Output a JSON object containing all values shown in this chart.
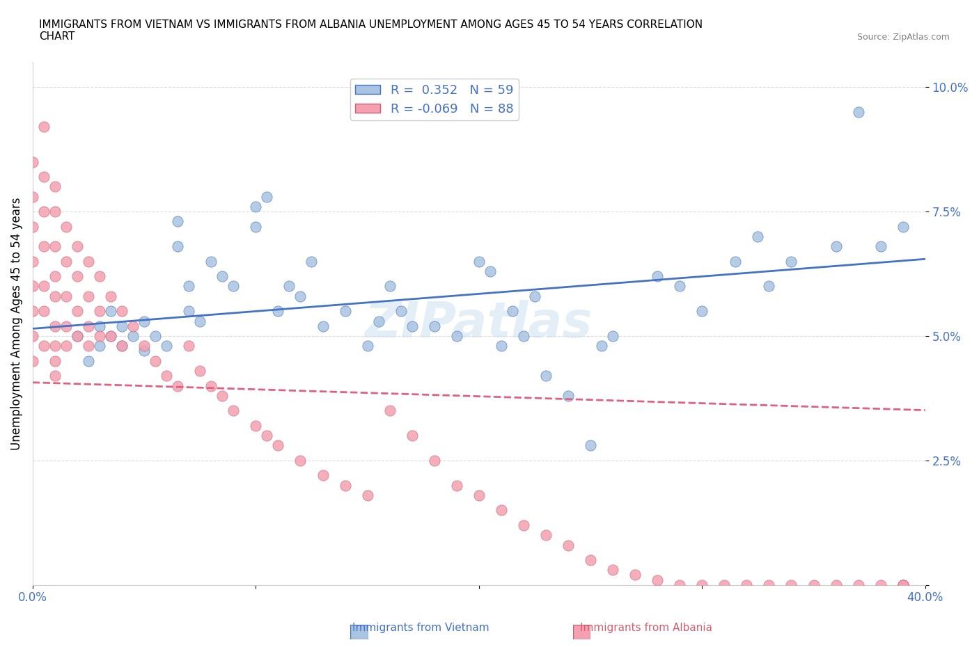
{
  "title": "IMMIGRANTS FROM VIETNAM VS IMMIGRANTS FROM ALBANIA UNEMPLOYMENT AMONG AGES 45 TO 54 YEARS CORRELATION\nCHART",
  "source_text": "Source: ZipAtlas.com",
  "ylabel": "Unemployment Among Ages 45 to 54 years",
  "xlim": [
    0.0,
    0.4
  ],
  "ylim": [
    0.0,
    0.105
  ],
  "xticks": [
    0.0,
    0.1,
    0.2,
    0.3,
    0.4
  ],
  "xticklabels": [
    "0.0%",
    "",
    "",
    "",
    "40.0%"
  ],
  "ytick_positions": [
    0.0,
    0.025,
    0.05,
    0.075,
    0.1
  ],
  "yticklabels": [
    "",
    "2.5%",
    "5.0%",
    "7.5%",
    "10.0%"
  ],
  "vietnam_R": 0.352,
  "vietnam_N": 59,
  "albania_R": -0.069,
  "albania_N": 88,
  "vietnam_color": "#a8c4e0",
  "albania_color": "#f4a0b0",
  "vietnam_line_color": "#4472c4",
  "albania_line_color": "#e06080",
  "watermark": "ZIPatlas",
  "legend_vietnam": "Immigrants from Vietnam",
  "legend_albania": "Immigrants from Albania",
  "vietnam_x": [
    0.02,
    0.025,
    0.03,
    0.03,
    0.035,
    0.035,
    0.04,
    0.04,
    0.045,
    0.05,
    0.05,
    0.055,
    0.06,
    0.065,
    0.065,
    0.07,
    0.07,
    0.075,
    0.08,
    0.085,
    0.09,
    0.1,
    0.1,
    0.105,
    0.11,
    0.115,
    0.12,
    0.125,
    0.13,
    0.14,
    0.15,
    0.155,
    0.16,
    0.165,
    0.17,
    0.18,
    0.19,
    0.2,
    0.205,
    0.21,
    0.215,
    0.22,
    0.225,
    0.23,
    0.24,
    0.25,
    0.255,
    0.26,
    0.28,
    0.29,
    0.3,
    0.315,
    0.325,
    0.33,
    0.34,
    0.36,
    0.37,
    0.38,
    0.39
  ],
  "vietnam_y": [
    0.05,
    0.045,
    0.048,
    0.052,
    0.05,
    0.055,
    0.048,
    0.052,
    0.05,
    0.047,
    0.053,
    0.05,
    0.048,
    0.073,
    0.068,
    0.055,
    0.06,
    0.053,
    0.065,
    0.062,
    0.06,
    0.076,
    0.072,
    0.078,
    0.055,
    0.06,
    0.058,
    0.065,
    0.052,
    0.055,
    0.048,
    0.053,
    0.06,
    0.055,
    0.052,
    0.052,
    0.05,
    0.065,
    0.063,
    0.048,
    0.055,
    0.05,
    0.058,
    0.042,
    0.038,
    0.028,
    0.048,
    0.05,
    0.062,
    0.06,
    0.055,
    0.065,
    0.07,
    0.06,
    0.065,
    0.068,
    0.095,
    0.068,
    0.072
  ],
  "albania_x": [
    0.0,
    0.0,
    0.0,
    0.0,
    0.0,
    0.0,
    0.0,
    0.0,
    0.005,
    0.005,
    0.005,
    0.005,
    0.005,
    0.005,
    0.005,
    0.01,
    0.01,
    0.01,
    0.01,
    0.01,
    0.01,
    0.01,
    0.01,
    0.01,
    0.015,
    0.015,
    0.015,
    0.015,
    0.015,
    0.02,
    0.02,
    0.02,
    0.02,
    0.025,
    0.025,
    0.025,
    0.025,
    0.03,
    0.03,
    0.03,
    0.035,
    0.035,
    0.04,
    0.04,
    0.045,
    0.05,
    0.055,
    0.06,
    0.065,
    0.07,
    0.075,
    0.08,
    0.085,
    0.09,
    0.1,
    0.105,
    0.11,
    0.12,
    0.13,
    0.14,
    0.15,
    0.16,
    0.17,
    0.18,
    0.19,
    0.2,
    0.21,
    0.22,
    0.23,
    0.24,
    0.25,
    0.26,
    0.27,
    0.28,
    0.29,
    0.3,
    0.31,
    0.32,
    0.33,
    0.34,
    0.35,
    0.36,
    0.37,
    0.38,
    0.39,
    0.39,
    0.39,
    0.39
  ],
  "albania_y": [
    0.085,
    0.078,
    0.072,
    0.065,
    0.06,
    0.055,
    0.05,
    0.045,
    0.092,
    0.082,
    0.075,
    0.068,
    0.06,
    0.055,
    0.048,
    0.08,
    0.075,
    0.068,
    0.062,
    0.058,
    0.052,
    0.048,
    0.045,
    0.042,
    0.072,
    0.065,
    0.058,
    0.052,
    0.048,
    0.068,
    0.062,
    0.055,
    0.05,
    0.065,
    0.058,
    0.052,
    0.048,
    0.062,
    0.055,
    0.05,
    0.058,
    0.05,
    0.055,
    0.048,
    0.052,
    0.048,
    0.045,
    0.042,
    0.04,
    0.048,
    0.043,
    0.04,
    0.038,
    0.035,
    0.032,
    0.03,
    0.028,
    0.025,
    0.022,
    0.02,
    0.018,
    0.035,
    0.03,
    0.025,
    0.02,
    0.018,
    0.015,
    0.012,
    0.01,
    0.008,
    0.005,
    0.003,
    0.002,
    0.001,
    0.0,
    0.0,
    0.0,
    0.0,
    0.0,
    0.0,
    0.0,
    0.0,
    0.0,
    0.0,
    0.0,
    0.0,
    0.0,
    0.0
  ]
}
